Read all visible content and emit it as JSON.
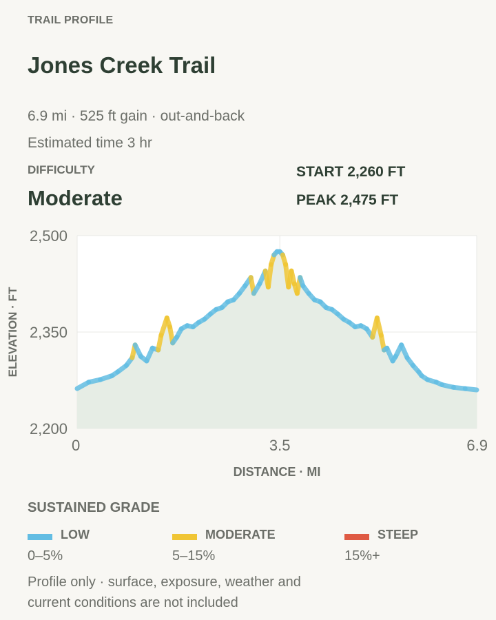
{
  "header": {
    "eyebrow": "TRAIL PROFILE",
    "title": "Jones Creek Trail",
    "meta": "6.9 mi · 525 ft gain · out-and-back",
    "time": "Estimated time 3 hr"
  },
  "difficulty": {
    "label": "DIFFICULTY",
    "value": "Moderate"
  },
  "stats": {
    "start": "START 2,260 FT",
    "peak": "PEAK 2,475 FT"
  },
  "legend": {
    "title": "SUSTAINED GRADE",
    "items": [
      {
        "name": "LOW",
        "range": "0–5%",
        "color": "#63bde3"
      },
      {
        "name": "MODERATE",
        "range": "5–15%",
        "color": "#f0c534"
      },
      {
        "name": "STEEP",
        "range": "15%+",
        "color": "#df5a43"
      }
    ]
  },
  "footnote": "Profile only · surface, exposure, weather and current conditions are not included",
  "colors": {
    "fill": "#e6ede5",
    "grid": "#e8e8e4",
    "text": "#6c6f69"
  },
  "chart_data": {
    "type": "area",
    "xlabel": "DISTANCE · MI",
    "ylabel": "ELEVATION · FT",
    "xlim": [
      0,
      6.9
    ],
    "ylim": [
      2200,
      2500
    ],
    "xticks": [
      "0",
      "3.5",
      "6.9"
    ],
    "xtick_values": [
      0,
      3.5,
      6.9
    ],
    "yticks": [
      "2,200",
      "2,350",
      "2,500"
    ],
    "ytick_values": [
      2200,
      2350,
      2500
    ],
    "grid": true,
    "x": [
      0,
      0.2,
      0.4,
      0.6,
      0.7,
      0.85,
      0.95,
      1.0,
      1.1,
      1.2,
      1.3,
      1.4,
      1.45,
      1.55,
      1.6,
      1.65,
      1.72,
      1.8,
      1.9,
      2.0,
      2.1,
      2.2,
      2.3,
      2.4,
      2.5,
      2.6,
      2.7,
      2.8,
      2.9,
      3.0,
      3.05,
      3.15,
      3.25,
      3.3,
      3.35,
      3.4,
      3.45,
      3.5,
      3.55,
      3.6,
      3.65,
      3.7,
      3.75,
      3.8,
      3.85,
      3.9,
      4.0,
      4.1,
      4.2,
      4.3,
      4.4,
      4.5,
      4.6,
      4.7,
      4.8,
      4.9,
      5.0,
      5.1,
      5.18,
      5.25,
      5.3,
      5.35,
      5.45,
      5.5,
      5.6,
      5.7,
      5.8,
      5.9,
      5.95,
      6.05,
      6.2,
      6.3,
      6.5,
      6.7,
      6.9
    ],
    "y": [
      2262,
      2272,
      2276,
      2282,
      2288,
      2298,
      2310,
      2330,
      2312,
      2305,
      2325,
      2322,
      2345,
      2372,
      2358,
      2333,
      2342,
      2355,
      2360,
      2358,
      2365,
      2370,
      2378,
      2385,
      2388,
      2397,
      2400,
      2410,
      2422,
      2435,
      2410,
      2425,
      2445,
      2420,
      2455,
      2470,
      2475,
      2475,
      2470,
      2455,
      2420,
      2445,
      2425,
      2410,
      2435,
      2422,
      2410,
      2400,
      2397,
      2388,
      2385,
      2378,
      2370,
      2365,
      2358,
      2360,
      2355,
      2342,
      2372,
      2345,
      2322,
      2325,
      2305,
      2312,
      2330,
      2310,
      2298,
      2288,
      2282,
      2276,
      2272,
      2268,
      2264,
      2262,
      2260
    ]
  }
}
